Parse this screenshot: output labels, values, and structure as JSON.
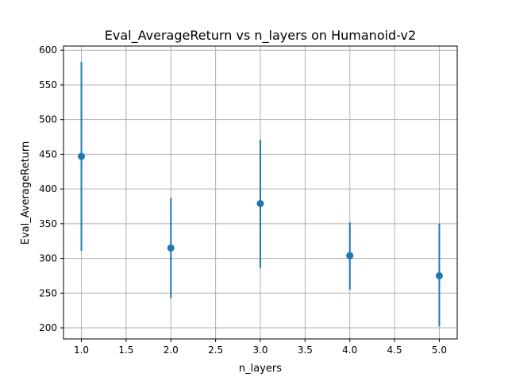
{
  "chart_data": {
    "type": "scatter",
    "title": "Eval_AverageReturn vs n_layers on Humanoid-v2",
    "xlabel": "n_layers",
    "ylabel": "Eval_AverageReturn",
    "xlim": [
      0.8,
      5.2
    ],
    "ylim": [
      184,
      606
    ],
    "xticks": [
      1.0,
      1.5,
      2.0,
      2.5,
      3.0,
      3.5,
      4.0,
      4.5,
      5.0
    ],
    "xtick_labels": [
      "1.0",
      "1.5",
      "2.0",
      "2.5",
      "3.0",
      "3.5",
      "4.0",
      "4.5",
      "5.0"
    ],
    "yticks": [
      200,
      250,
      300,
      350,
      400,
      450,
      500,
      550,
      600
    ],
    "ytick_labels": [
      "200",
      "250",
      "300",
      "350",
      "400",
      "450",
      "500",
      "550",
      "600"
    ],
    "grid": true,
    "color": "#1f77b4",
    "points": [
      {
        "x": 1.0,
        "y": 447,
        "err_low": 311,
        "err_high": 583
      },
      {
        "x": 2.0,
        "y": 315,
        "err_low": 243,
        "err_high": 387
      },
      {
        "x": 3.0,
        "y": 379,
        "err_low": 286,
        "err_high": 471
      },
      {
        "x": 4.0,
        "y": 304,
        "err_low": 255,
        "err_high": 352
      },
      {
        "x": 5.0,
        "y": 275,
        "err_low": 202,
        "err_high": 350
      }
    ]
  }
}
